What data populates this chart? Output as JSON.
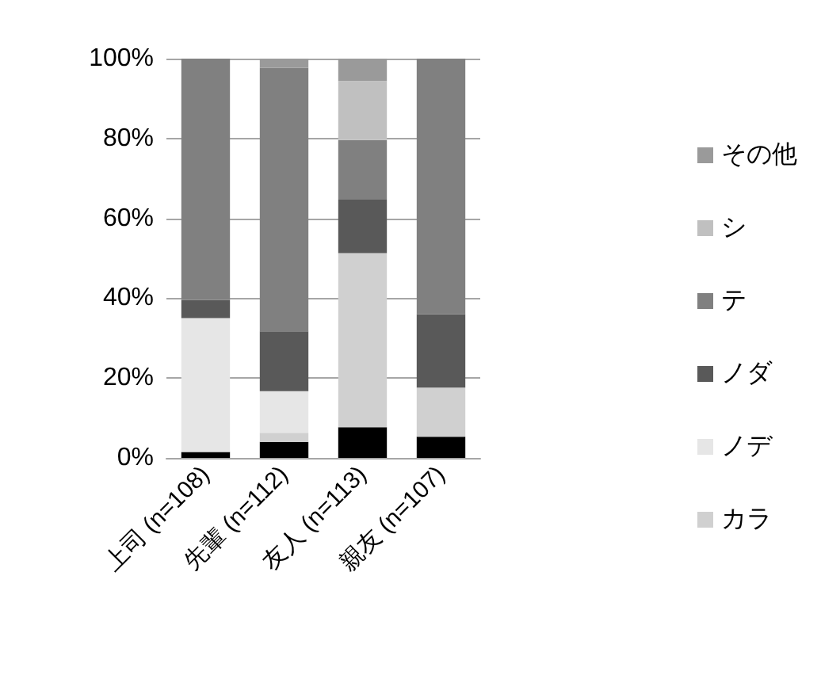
{
  "chart_data": {
    "type": "bar",
    "stacked": true,
    "categories": [
      "上司 (n=108)",
      "先輩 (n=112)",
      "友人 (n=113)",
      "親友 (n=107)"
    ],
    "series": [
      {
        "color": "#000000",
        "values": [
          1.5,
          4,
          7.7,
          5.3
        ]
      },
      {
        "name": "カラ",
        "color": "#d0d0d0",
        "values": [
          0,
          2.3,
          43.6,
          12.3
        ]
      },
      {
        "name": "ノデ",
        "color": "#e6e6e6",
        "values": [
          33.5,
          10.4,
          0,
          0
        ]
      },
      {
        "name": "ノダ",
        "color": "#595959",
        "values": [
          4.6,
          15,
          13.4,
          18.4
        ]
      },
      {
        "name": "テ",
        "color": "#808080",
        "values": [
          60.4,
          66,
          14.9,
          64
        ]
      },
      {
        "name": "シ",
        "color": "#c0c0c0",
        "values": [
          0,
          0,
          14.8,
          0
        ]
      },
      {
        "name": "その他",
        "color": "#9a9a9a",
        "values": [
          0,
          2.3,
          5.6,
          0
        ]
      }
    ],
    "ylim": [
      0,
      100
    ],
    "yticks": [
      {
        "value": 0,
        "label": "0%"
      },
      {
        "value": 20,
        "label": "20%"
      },
      {
        "value": 40,
        "label": "40%"
      },
      {
        "value": 60,
        "label": "60%"
      },
      {
        "value": 80,
        "label": "80%"
      },
      {
        "value": 100,
        "label": "100%"
      }
    ],
    "grid": "y",
    "legend": "right"
  }
}
